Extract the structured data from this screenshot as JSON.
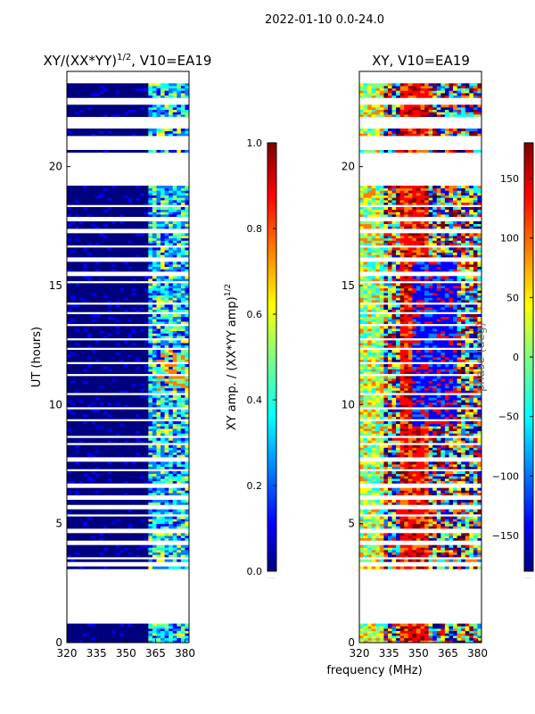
{
  "figure_title": "2022-01-10 0.0-24.0",
  "shared_xlabel": "frequency (MHz)",
  "colors": {
    "jet": [
      "#00007f",
      "#0000ff",
      "#007fff",
      "#00ffff",
      "#7fff7f",
      "#ffff00",
      "#ff7f00",
      "#ff0000",
      "#7f0000"
    ]
  },
  "chart_data": [
    {
      "type": "heatmap",
      "title_main": "XY/(XX*YY)",
      "title_sup": "1/2",
      "title_tail": ", V10=EA19",
      "title": "XY/(XX*YY)^1/2, V10=EA19",
      "xlabel": "",
      "ylabel": "UT (hours)",
      "xlim": [
        320,
        382
      ],
      "ylim": [
        0,
        24
      ],
      "xticks": [
        320,
        335,
        350,
        365,
        380
      ],
      "yticks": [
        0,
        5,
        10,
        15,
        20
      ],
      "colorbar": {
        "label_main": "XY amp. / (XX*YY amp)",
        "label_sup": "1/2",
        "label": "XY amp. / (XX*YY amp)^1/2",
        "range": [
          0.0,
          1.0
        ],
        "ticks": [
          "0.0",
          "0.2",
          "0.4",
          "0.6",
          "0.8",
          "1.0"
        ],
        "tick_values": [
          0.0,
          0.2,
          0.4,
          0.6,
          0.8,
          1.0
        ],
        "extra_label": "....."
      }
    },
    {
      "type": "heatmap",
      "title": "XY, V10=EA19",
      "xlabel": "frequency (MHz)",
      "ylabel": "",
      "xlim": [
        320,
        382
      ],
      "ylim": [
        0,
        24
      ],
      "xticks": [
        320,
        335,
        350,
        365,
        380
      ],
      "yticks": [
        0,
        5,
        10,
        15,
        20
      ],
      "colorbar": {
        "label": "phase (deg)",
        "range": [
          -180,
          180
        ],
        "ticks": [
          "−150",
          "−100",
          "−50",
          "0",
          "50",
          "100",
          "150"
        ],
        "tick_values": [
          -150,
          -100,
          -50,
          0,
          50,
          100,
          150
        ],
        "extra_label": "....."
      }
    }
  ]
}
